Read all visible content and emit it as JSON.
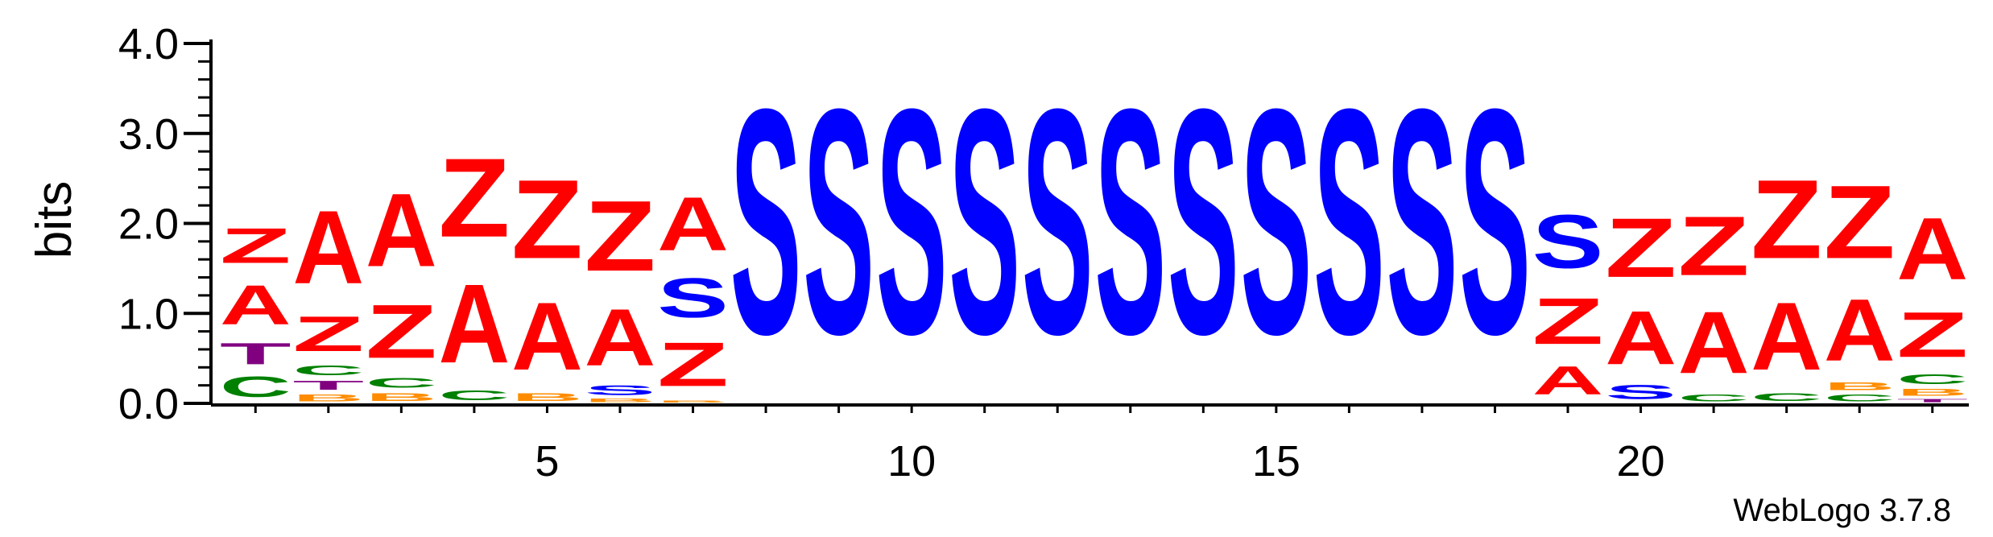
{
  "chart_data": {
    "type": "sequence-logo",
    "ylabel": "bits",
    "ylim": [
      0,
      4.0
    ],
    "y_ticks": [
      "0.0",
      "1.0",
      "2.0",
      "3.0",
      "4.0"
    ],
    "x_tick_labels": [
      "5",
      "10",
      "15",
      "20"
    ],
    "x_tick_positions": [
      5,
      10,
      15,
      20
    ],
    "positions": 24,
    "colors": {
      "Z": "#ff0000",
      "A": "#ff0000",
      "S": "#0000ff",
      "T": "#800080",
      "C": "#008000",
      "B": "#ff8c00"
    },
    "columns": [
      {
        "pos": 1,
        "stack": [
          [
            "C",
            0.36
          ],
          [
            "T",
            0.38
          ],
          [
            "A",
            0.7
          ],
          [
            "Z",
            0.62
          ]
        ]
      },
      {
        "pos": 2,
        "stack": [
          [
            "B",
            0.12
          ],
          [
            "T",
            0.16
          ],
          [
            "C",
            0.18
          ],
          [
            "Z",
            0.62
          ],
          [
            "A",
            1.3
          ]
        ]
      },
      {
        "pos": 3,
        "stack": [
          [
            "B",
            0.14
          ],
          [
            "C",
            0.18
          ],
          [
            "Z",
            0.95
          ],
          [
            "A",
            1.3
          ]
        ]
      },
      {
        "pos": 4,
        "stack": [
          [
            "C",
            0.18
          ],
          [
            "A",
            1.4
          ],
          [
            "Z",
            1.4
          ]
        ]
      },
      {
        "pos": 5,
        "stack": [
          [
            "B",
            0.14
          ],
          [
            "A",
            1.2
          ],
          [
            "Z",
            1.4
          ]
        ]
      },
      {
        "pos": 6,
        "stack": [
          [
            "B",
            0.06
          ],
          [
            "S",
            0.17
          ],
          [
            "A",
            1.0
          ],
          [
            "Z",
            1.25
          ]
        ]
      },
      {
        "pos": 7,
        "stack": [
          [
            "B",
            0.04
          ],
          [
            "Z",
            0.78
          ],
          [
            "S",
            0.7
          ],
          [
            "A",
            0.95
          ]
        ]
      },
      {
        "pos": 8,
        "stack": [
          [
            "S",
            4.0
          ]
        ]
      },
      {
        "pos": 9,
        "stack": [
          [
            "S",
            4.0
          ]
        ]
      },
      {
        "pos": 10,
        "stack": [
          [
            "S",
            4.0
          ]
        ]
      },
      {
        "pos": 11,
        "stack": [
          [
            "S",
            4.0
          ]
        ]
      },
      {
        "pos": 12,
        "stack": [
          [
            "S",
            4.0
          ]
        ]
      },
      {
        "pos": 13,
        "stack": [
          [
            "S",
            4.0
          ]
        ]
      },
      {
        "pos": 14,
        "stack": [
          [
            "S",
            4.0
          ]
        ]
      },
      {
        "pos": 15,
        "stack": [
          [
            "S",
            4.0
          ]
        ]
      },
      {
        "pos": 16,
        "stack": [
          [
            "S",
            4.0
          ]
        ]
      },
      {
        "pos": 17,
        "stack": [
          [
            "S",
            4.0
          ]
        ]
      },
      {
        "pos": 18,
        "stack": [
          [
            "S",
            4.0
          ]
        ]
      },
      {
        "pos": 19,
        "stack": [
          [
            "A",
            0.5
          ],
          [
            "Z",
            0.82
          ],
          [
            "S",
            0.95
          ]
        ]
      },
      {
        "pos": 20,
        "stack": [
          [
            "S",
            0.25
          ],
          [
            "A",
            0.95
          ],
          [
            "Z",
            1.05
          ]
        ]
      },
      {
        "pos": 21,
        "stack": [
          [
            "C",
            0.12
          ],
          [
            "A",
            1.1
          ],
          [
            "Z",
            1.05
          ]
        ]
      },
      {
        "pos": 22,
        "stack": [
          [
            "C",
            0.14
          ],
          [
            "A",
            1.2
          ],
          [
            "Z",
            1.4
          ]
        ]
      },
      {
        "pos": 23,
        "stack": [
          [
            "C",
            0.12
          ],
          [
            "B",
            0.14
          ],
          [
            "A",
            1.1
          ],
          [
            "Z",
            1.3
          ]
        ]
      },
      {
        "pos": 24,
        "stack": [
          [
            "T",
            0.06
          ],
          [
            "B",
            0.12
          ],
          [
            "C",
            0.18
          ],
          [
            "Z",
            0.8
          ],
          [
            "A",
            1.1
          ]
        ]
      }
    ]
  },
  "footer": {
    "version_label": "WebLogo 3.7.8"
  }
}
